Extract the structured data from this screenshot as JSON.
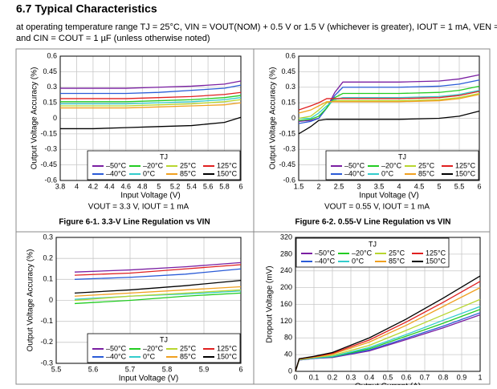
{
  "header": {
    "title": "6.7 Typical Characteristics",
    "conditions": [
      "at operating temperature range TJ = 25°C, VIN = VOUT(NOM) + 0.5 V or 1.5 V (whichever is greater), IOUT = 1 mA, VEN = VIN,",
      "and CIN = COUT = 1 µF (unless otherwise noted)"
    ]
  },
  "chart_data": [
    {
      "type": "line",
      "x_label": "Input Voltage (V)",
      "y_label": "Output Voltage Accuracy (%)",
      "note": "VOUT = 3.3 V, IOUT = 1 mA",
      "caption": "Figure 6-1. 3.3-V Line Regulation vs VIN",
      "legend_title": "TJ",
      "legend": "lower right",
      "grid": true,
      "xlim": [
        3.8,
        6
      ],
      "xticks": [
        3.8,
        4,
        4.2,
        4.4,
        4.6,
        4.8,
        5,
        5.2,
        5.4,
        5.6,
        5.8,
        6
      ],
      "ylim": [
        -0.6,
        0.6
      ],
      "yticks": [
        -0.6,
        -0.45,
        -0.3,
        -0.15,
        0,
        0.15,
        0.3,
        0.45,
        0.6
      ],
      "x": [
        3.8,
        4.2,
        4.6,
        5,
        5.4,
        5.8,
        6
      ],
      "series": [
        {
          "name": "–50°C",
          "color": "#7a1fa2",
          "values": [
            0.29,
            0.29,
            0.29,
            0.3,
            0.31,
            0.33,
            0.36
          ]
        },
        {
          "name": "–40°C",
          "color": "#2a5bd7",
          "values": [
            0.24,
            0.24,
            0.24,
            0.25,
            0.27,
            0.29,
            0.32
          ]
        },
        {
          "name": "–20°C",
          "color": "#22cc22",
          "values": [
            0.16,
            0.16,
            0.16,
            0.17,
            0.18,
            0.2,
            0.22
          ]
        },
        {
          "name": "0°C",
          "color": "#33cccc",
          "values": [
            0.14,
            0.14,
            0.14,
            0.15,
            0.16,
            0.18,
            0.2
          ]
        },
        {
          "name": "25°C",
          "color": "#b8d630",
          "values": [
            0.12,
            0.12,
            0.12,
            0.13,
            0.14,
            0.16,
            0.18
          ]
        },
        {
          "name": "85°C",
          "color": "#f0a020",
          "values": [
            0.1,
            0.1,
            0.1,
            0.11,
            0.12,
            0.13,
            0.15
          ]
        },
        {
          "name": "125°C",
          "color": "#e02020",
          "values": [
            0.19,
            0.19,
            0.19,
            0.2,
            0.21,
            0.23,
            0.25
          ]
        },
        {
          "name": "150°C",
          "color": "#000000",
          "values": [
            -0.1,
            -0.1,
            -0.09,
            -0.08,
            -0.07,
            -0.04,
            0.01
          ]
        }
      ]
    },
    {
      "type": "line",
      "x_label": "Input Voltage (V)",
      "y_label": "Output Voltage Accuracy (%)",
      "note": "VOUT = 0.55 V, IOUT = 1 mA",
      "caption": "Figure 6-2. 0.55-V Line Regulation vs VIN",
      "legend_title": "TJ",
      "legend": "lower right",
      "grid": true,
      "xlim": [
        1.5,
        6
      ],
      "xticks": [
        1.5,
        2,
        2.5,
        3,
        3.5,
        4,
        4.5,
        5,
        5.5,
        6
      ],
      "ylim": [
        -0.6,
        0.6
      ],
      "yticks": [
        -0.6,
        -0.45,
        -0.3,
        -0.15,
        0,
        0.15,
        0.3,
        0.45,
        0.6
      ],
      "x": [
        1.5,
        1.8,
        2,
        2.2,
        2.4,
        2.6,
        3,
        4,
        5,
        5.5,
        6
      ],
      "series": [
        {
          "name": "–50°C",
          "color": "#7a1fa2",
          "values": [
            -0.03,
            -0.02,
            0,
            0.1,
            0.25,
            0.35,
            0.35,
            0.35,
            0.36,
            0.38,
            0.42
          ]
        },
        {
          "name": "–40°C",
          "color": "#2a5bd7",
          "values": [
            -0.05,
            -0.03,
            0,
            0.1,
            0.22,
            0.3,
            0.3,
            0.3,
            0.31,
            0.33,
            0.37
          ]
        },
        {
          "name": "–20°C",
          "color": "#22cc22",
          "values": [
            -0.02,
            -0.01,
            0.02,
            0.1,
            0.2,
            0.24,
            0.24,
            0.24,
            0.25,
            0.27,
            0.31
          ]
        },
        {
          "name": "0°C",
          "color": "#33cccc",
          "values": [
            0,
            0,
            0.05,
            0.12,
            0.18,
            0.2,
            0.2,
            0.2,
            0.21,
            0.23,
            0.27
          ]
        },
        {
          "name": "25°C",
          "color": "#b8d630",
          "values": [
            0,
            0.02,
            0.08,
            0.15,
            0.17,
            0.17,
            0.17,
            0.17,
            0.18,
            0.2,
            0.24
          ]
        },
        {
          "name": "85°C",
          "color": "#f0a020",
          "values": [
            0.05,
            0.08,
            0.12,
            0.16,
            0.16,
            0.16,
            0.16,
            0.16,
            0.17,
            0.19,
            0.23
          ]
        },
        {
          "name": "125°C",
          "color": "#e02020",
          "values": [
            0.08,
            0.12,
            0.15,
            0.19,
            0.19,
            0.19,
            0.19,
            0.19,
            0.2,
            0.22,
            0.26
          ]
        },
        {
          "name": "150°C",
          "color": "#000000",
          "values": [
            -0.15,
            -0.08,
            -0.02,
            -0.01,
            -0.01,
            -0.01,
            -0.01,
            -0.01,
            0,
            0.02,
            0.07
          ]
        }
      ]
    },
    {
      "type": "line",
      "x_label": "Input Voltage (V)",
      "y_label": "Output Voltage Accuracy (%)",
      "legend_title": "TJ",
      "legend": "lower right",
      "grid": true,
      "xlim": [
        5.5,
        6
      ],
      "xticks": [
        5.5,
        5.6,
        5.7,
        5.8,
        5.9,
        6
      ],
      "ylim": [
        -0.3,
        0.3
      ],
      "yticks": [
        -0.3,
        -0.2,
        -0.1,
        0,
        0.1,
        0.2,
        0.3
      ],
      "x": [
        5.55,
        5.7,
        5.85,
        6
      ],
      "series": [
        {
          "name": "–50°C",
          "color": "#7a1fa2",
          "values": [
            0.135,
            0.145,
            0.16,
            0.18
          ]
        },
        {
          "name": "–40°C",
          "color": "#2a5bd7",
          "values": [
            0.1,
            0.11,
            0.125,
            0.15
          ]
        },
        {
          "name": "–20°C",
          "color": "#22cc22",
          "values": [
            -0.015,
            0,
            0.02,
            0.035
          ]
        },
        {
          "name": "0°C",
          "color": "#33cccc",
          "values": [
            0.005,
            0.02,
            0.03,
            0.045
          ]
        },
        {
          "name": "25°C",
          "color": "#b8d630",
          "values": [
            0,
            0.02,
            0.035,
            0.05
          ]
        },
        {
          "name": "85°C",
          "color": "#f0a020",
          "values": [
            0.02,
            0.035,
            0.05,
            0.065
          ]
        },
        {
          "name": "125°C",
          "color": "#e02020",
          "values": [
            0.12,
            0.13,
            0.15,
            0.17
          ]
        },
        {
          "name": "150°C",
          "color": "#000000",
          "values": [
            0.035,
            0.05,
            0.07,
            0.095
          ]
        }
      ]
    },
    {
      "type": "line",
      "x_label": "Output Current (A)",
      "y_label": "Dropout Voltage (mV)",
      "legend_title": "TJ",
      "legend": "upper left",
      "grid": true,
      "xlim": [
        0,
        1
      ],
      "xticks": [
        0,
        0.1,
        0.2,
        0.3,
        0.4,
        0.5,
        0.6,
        0.7,
        0.8,
        0.9,
        1
      ],
      "ylim": [
        0,
        320
      ],
      "yticks": [
        0,
        40,
        80,
        120,
        160,
        200,
        240,
        280,
        320
      ],
      "x": [
        0,
        0.02,
        0.1,
        0.2,
        0.4,
        0.6,
        0.8,
        1
      ],
      "series": [
        {
          "name": "–50°C",
          "color": "#7a1fa2",
          "values": [
            0,
            27,
            31,
            33,
            49,
            76,
            104,
            135
          ]
        },
        {
          "name": "–40°C",
          "color": "#2a5bd7",
          "values": [
            0,
            27,
            31,
            34,
            51,
            79,
            108,
            140
          ]
        },
        {
          "name": "–20°C",
          "color": "#22cc22",
          "values": [
            0,
            28,
            32,
            35,
            54,
            84,
            115,
            148
          ]
        },
        {
          "name": "0°C",
          "color": "#33cccc",
          "values": [
            0,
            28,
            32,
            36,
            57,
            88,
            122,
            155
          ]
        },
        {
          "name": "25°C",
          "color": "#b8d630",
          "values": [
            0,
            28,
            33,
            38,
            62,
            98,
            135,
            172
          ]
        },
        {
          "name": "85°C",
          "color": "#f0a020",
          "values": [
            0,
            29,
            34,
            41,
            70,
            110,
            155,
            200
          ]
        },
        {
          "name": "125°C",
          "color": "#e02020",
          "values": [
            0,
            30,
            35,
            43,
            75,
            118,
            165,
            215
          ]
        },
        {
          "name": "150°C",
          "color": "#000000",
          "values": [
            0,
            30,
            36,
            45,
            80,
            125,
            175,
            228
          ]
        }
      ]
    }
  ]
}
